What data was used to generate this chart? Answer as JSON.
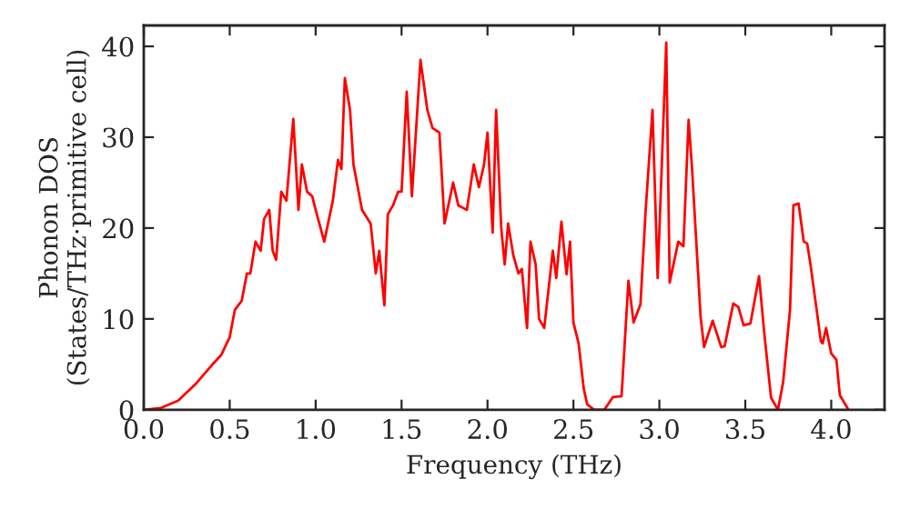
{
  "chart_data": {
    "type": "line",
    "xlabel": "Frequency (THz)",
    "ylabel": "Phonon DOS\n(States/THz·primitive cell)",
    "xlim": [
      0,
      4.31
    ],
    "ylim": [
      0,
      42.3
    ],
    "xticks": [
      {
        "value": 0,
        "label": "0.0"
      },
      {
        "value": 0.5,
        "label": "0.5"
      },
      {
        "value": 1,
        "label": "1.0"
      },
      {
        "value": 1.5,
        "label": "1.5"
      },
      {
        "value": 2,
        "label": "2.0"
      },
      {
        "value": 2.5,
        "label": "2.5"
      },
      {
        "value": 3,
        "label": "3.0"
      },
      {
        "value": 3.5,
        "label": "3.5"
      },
      {
        "value": 4,
        "label": "4.0"
      }
    ],
    "yticks": [
      0,
      10,
      20,
      30,
      40
    ],
    "grid": false,
    "legend": false,
    "marker": "none",
    "line_style": "solid",
    "series": [
      {
        "color": "#ff0000",
        "x": [
          0.0,
          0.1,
          0.2,
          0.3,
          0.4,
          0.45,
          0.5,
          0.53,
          0.57,
          0.6,
          0.62,
          0.65,
          0.68,
          0.7,
          0.73,
          0.75,
          0.77,
          0.8,
          0.83,
          0.87,
          0.9,
          0.92,
          0.95,
          0.98,
          1.0,
          1.05,
          1.1,
          1.13,
          1.15,
          1.17,
          1.2,
          1.22,
          1.27,
          1.32,
          1.35,
          1.37,
          1.4,
          1.42,
          1.45,
          1.48,
          1.5,
          1.53,
          1.56,
          1.61,
          1.65,
          1.68,
          1.72,
          1.75,
          1.8,
          1.83,
          1.88,
          1.92,
          1.95,
          1.98,
          2.0,
          2.03,
          2.05,
          2.08,
          2.1,
          2.12,
          2.15,
          2.18,
          2.2,
          2.23,
          2.25,
          2.28,
          2.3,
          2.33,
          2.38,
          2.4,
          2.43,
          2.46,
          2.48,
          2.5,
          2.53,
          2.56,
          2.58,
          2.62,
          2.68,
          2.73,
          2.78,
          2.82,
          2.85,
          2.89,
          2.92,
          2.96,
          2.99,
          3.04,
          3.06,
          3.11,
          3.14,
          3.17,
          3.19,
          3.24,
          3.26,
          3.31,
          3.36,
          3.38,
          3.43,
          3.46,
          3.49,
          3.53,
          3.58,
          3.61,
          3.65,
          3.69,
          3.72,
          3.76,
          3.78,
          3.81,
          3.84,
          3.86,
          3.88,
          3.94,
          3.95,
          3.97,
          4.0,
          4.03,
          4.05,
          4.1
        ],
        "values": [
          0,
          0.2,
          1,
          2.8,
          5,
          6,
          8,
          11,
          12,
          15,
          15,
          18.5,
          17.5,
          21,
          22,
          17.5,
          16.5,
          24,
          23,
          32,
          22,
          27,
          24,
          23.5,
          22,
          18.5,
          23,
          27.5,
          26.5,
          36.5,
          33,
          27,
          22,
          20.5,
          15,
          17.5,
          11.5,
          21.5,
          22.5,
          24,
          24,
          35,
          23.5,
          38.5,
          33,
          31,
          30.5,
          20.5,
          25,
          22.5,
          22,
          27,
          24.5,
          27,
          30.5,
          19.5,
          33,
          20,
          16,
          20.5,
          17,
          15,
          15.5,
          9,
          18.5,
          16,
          10,
          9,
          17.5,
          14.5,
          20.7,
          14.9,
          18.5,
          9.6,
          7.3,
          2.3,
          0.6,
          0,
          0,
          1.4,
          1.5,
          14.2,
          9.6,
          11.6,
          21.9,
          33,
          14.5,
          40.4,
          14,
          18.5,
          18,
          31.9,
          26.6,
          10.2,
          6.9,
          9.8,
          6.9,
          7,
          11.7,
          11.3,
          9.3,
          9.5,
          14.7,
          8.5,
          1.3,
          0,
          3,
          11,
          22.5,
          22.7,
          18.5,
          18.3,
          15.9,
          7.5,
          7.3,
          9,
          6.2,
          5.5,
          1.6,
          0
        ]
      }
    ]
  }
}
